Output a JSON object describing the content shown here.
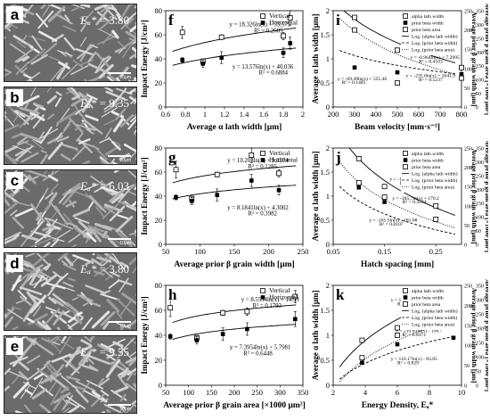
{
  "micro_panels": [
    {
      "label": "a",
      "energy_symbol": "Eₐ*",
      "energy_value": "= 3.80",
      "scale": "10μm",
      "seed": 3
    },
    {
      "label": "b",
      "energy_symbol": "Eₐ*",
      "energy_value": "= 9.35",
      "scale": "10μm",
      "seed": 7
    },
    {
      "label": "c",
      "energy_symbol": "Eₐ*",
      "energy_value": "= 6.03",
      "scale": "10μm",
      "seed": 11
    },
    {
      "label": "d",
      "energy_symbol": "Eₐ*",
      "energy_value": "= 3.80",
      "scale": "10μm",
      "seed": 19
    },
    {
      "label": "e",
      "energy_symbol": "Eₐ*",
      "energy_value": "= 9.55",
      "scale": "10μm",
      "seed": 23
    }
  ],
  "chart_data": [
    {
      "id": "f",
      "type": "scatter",
      "label": "f",
      "xlabel": "Average α lath width [μm]",
      "ylabel": "Impact Energy [J/cm²]",
      "xlim": [
        0.6,
        2.0
      ],
      "ylim": [
        0,
        80
      ],
      "xticks": [
        "0.6",
        "0.8",
        "1",
        "1.2",
        "1.4",
        "1.6",
        "1.8",
        "2"
      ],
      "xtick_vals": [
        0.6,
        0.8,
        1.0,
        1.2,
        1.4,
        1.6,
        1.8,
        2.0
      ],
      "yticks": [
        "0",
        "20",
        "40",
        "60",
        "80"
      ],
      "ytick_vals": [
        0,
        20,
        40,
        60,
        80
      ],
      "legend": [
        "Vertical",
        "Horizontal"
      ],
      "series": [
        {
          "name": "Vertical",
          "marker": "open-square",
          "fit": {
            "a": 18.326,
            "b": 53.575
          },
          "x": [
            0.77,
            0.98,
            1.17,
            1.8,
            1.87
          ],
          "y": [
            62,
            38,
            58,
            59,
            74
          ],
          "err": [
            5,
            2,
            2,
            3,
            6
          ]
        },
        {
          "name": "Horizontal",
          "marker": "filled-square",
          "fit": {
            "a": 13.576,
            "b": 40.036
          },
          "x": [
            0.77,
            0.98,
            1.17,
            1.8,
            1.87
          ],
          "y": [
            39,
            36,
            41,
            45,
            53
          ],
          "err": [
            2,
            3,
            5,
            4,
            5
          ]
        }
      ],
      "annotations": [
        {
          "text": "y = 18.326ln(x) + 53.575",
          "tx": 1.25,
          "ty": 67
        },
        {
          "text": "R² = 0.2605",
          "tx": 1.5,
          "ty": 62
        },
        {
          "text": "y = 13.576ln(x) + 40.036",
          "tx": 1.28,
          "ty": 32
        },
        {
          "text": "R² = 0.6884",
          "tx": 1.55,
          "ty": 27
        }
      ]
    },
    {
      "id": "g",
      "type": "scatter",
      "label": "g",
      "xlabel": "Average prior β grain width [μm]",
      "ylabel": "Impact Energy [J/cm²]",
      "xlim": [
        50,
        250
      ],
      "ylim": [
        0,
        80
      ],
      "xticks": [
        "50",
        "100",
        "150",
        "200",
        "250"
      ],
      "xtick_vals": [
        50,
        100,
        150,
        200,
        250
      ],
      "yticks": [
        "0",
        "20",
        "40",
        "60",
        "80"
      ],
      "ytick_vals": [
        0,
        20,
        40,
        60,
        80
      ],
      "legend": [
        "Vertical",
        "Horizontal"
      ],
      "series": [
        {
          "name": "Vertical",
          "marker": "open-square",
          "fit": {
            "a": 10.203,
            "b": 9.3374
          },
          "x": [
            65,
            88,
            125,
            175,
            215
          ],
          "y": [
            62,
            38,
            58,
            74,
            59
          ],
          "err": [
            7,
            3,
            2,
            6,
            3
          ]
        },
        {
          "name": "Horizontal",
          "marker": "filled-square",
          "fit": {
            "a": 8.1841,
            "b": 4.3002
          },
          "x": [
            65,
            88,
            125,
            175,
            215
          ],
          "y": [
            39,
            36,
            41,
            53,
            45
          ],
          "err": [
            2,
            3,
            5,
            5,
            4
          ]
        }
      ],
      "annotations": [
        {
          "text": "y = 10.203ln(x) + 9.3374",
          "tx": 140,
          "ty": 68
        },
        {
          "text": "R² = 0.1285",
          "tx": 170,
          "ty": 63
        },
        {
          "text": "y = 8.1841ln(x) + 4.3002",
          "tx": 140,
          "ty": 29
        },
        {
          "text": "R² = 0.3982",
          "tx": 170,
          "ty": 24
        }
      ]
    },
    {
      "id": "h",
      "type": "scatter",
      "label": "h",
      "xlabel": "Average prior β grain area [×1000 μm²]",
      "ylabel": "Impact Energy [J/cm²]",
      "xlim": [
        50,
        350
      ],
      "ylim": [
        0,
        80
      ],
      "xticks": [
        "50",
        "100",
        "150",
        "200",
        "250",
        "300",
        "350"
      ],
      "xtick_vals": [
        50,
        100,
        150,
        200,
        250,
        300,
        350
      ],
      "yticks": [
        "0",
        "20",
        "40",
        "60",
        "80"
      ],
      "ytick_vals": [
        0,
        20,
        40,
        60,
        80
      ],
      "legend": [
        "Vertical",
        "Horizontal"
      ],
      "series": [
        {
          "name": "Vertical",
          "marker": "open-square",
          "fit": {
            "a": 8.5594,
            "b": 14.53
          },
          "x": [
            60,
            118,
            175,
            228,
            333
          ],
          "y": [
            62,
            38,
            58,
            59,
            71
          ],
          "err": [
            7,
            2,
            2,
            3,
            5
          ]
        },
        {
          "name": "Horizontal",
          "marker": "filled-square",
          "fit": {
            "a": 7.3954,
            "b": 5.7981
          },
          "x": [
            60,
            118,
            175,
            228,
            333
          ],
          "y": [
            39,
            36,
            41,
            45,
            53
          ],
          "err": [
            2,
            3,
            5,
            5,
            6
          ]
        }
      ],
      "annotations": [
        {
          "text": "y = 8.5594ln(x) + 14.53",
          "tx": 215,
          "ty": 67
        },
        {
          "text": "R² = 0.1793",
          "tx": 240,
          "ty": 62
        },
        {
          "text": "y = 7.3954ln(x) + 5.7981",
          "tx": 190,
          "ty": 29
        },
        {
          "text": "R² = 0.6448",
          "tx": 220,
          "ty": 24
        }
      ]
    },
    {
      "id": "i",
      "type": "scatter",
      "label": "i",
      "xlabel": "Beam velocity [mm·s⁻¹]",
      "ylabel": "Average α lath width [μm]",
      "ylabel2": "Average prior β grain width [μm]",
      "ylabel3": "Average prior β grain area [×1000 μm²]",
      "xlim": [
        200,
        800
      ],
      "ylim": [
        0,
        2
      ],
      "xticks": [
        "200",
        "300",
        "400",
        "500",
        "600",
        "700",
        "800"
      ],
      "xtick_vals": [
        200,
        300,
        400,
        500,
        600,
        700,
        800
      ],
      "yticks": [
        "0",
        "0.5",
        "1",
        "1.5",
        "2"
      ],
      "ytick_vals": [
        0,
        0.5,
        1.0,
        1.5,
        2.0
      ],
      "y2ticks": [
        "0",
        "50",
        "100",
        "150",
        "200",
        "250"
      ],
      "y3ticks": [
        "0",
        "50",
        "100",
        "150",
        "200",
        "250",
        "300",
        "350"
      ],
      "legend": [
        "alpha lath width",
        "prior beta width",
        "prior beta area",
        "Log. (alpha lath width)",
        "Log. (prior beta width)",
        "Log. (prior beta area)"
      ],
      "series": [
        {
          "name": "alpha lath width",
          "marker": "open-square",
          "fit": {
            "a": -0.96,
            "b": 7.2995
          },
          "x": [
            300,
            500,
            800
          ],
          "y": [
            1.86,
            1.18,
            0.82
          ]
        },
        {
          "name": "prior beta width",
          "marker": "filled-square",
          "fit": {
            "a": -0.4,
            "b": 3.35
          },
          "x": [
            300,
            500,
            800
          ],
          "y": [
            0.82,
            0.72,
            0.68
          ]
        },
        {
          "name": "prior beta area",
          "marker": "open-square",
          "fit": {
            "a": -0.96,
            "b": 7.06
          },
          "x": [
            300,
            500,
            800
          ],
          "y": [
            1.6,
            0.5,
            0.6
          ]
        }
      ],
      "annotations": [
        {
          "text": "y = -0.964ln(x) + 7.2995",
          "tx": 560,
          "ty": 1.0
        },
        {
          "text": "R² = 0.4103",
          "tx": 600,
          "ty": 0.92
        },
        {
          "text": "y = -235.6ln(x) + 1641.9",
          "tx": 540,
          "ty": 0.62
        },
        {
          "text": "R² = 0.5237",
          "tx": 600,
          "ty": 0.54
        },
        {
          "text": "y = -69.49ln(x) + 555.46",
          "tx": 220,
          "ty": 0.56
        },
        {
          "text": "R² = 0.1483",
          "tx": 240,
          "ty": 0.48
        }
      ]
    },
    {
      "id": "j",
      "type": "scatter",
      "label": "j",
      "xlabel": "Hatch spacing [mm]",
      "ylabel": "Average α lath width [μm]",
      "ylabel2": "Average prior β grain width [μm]",
      "ylabel3": "Average prior β grain area [×1000 μm²]",
      "xlim": [
        0.05,
        0.3
      ],
      "ylim": [
        0,
        2
      ],
      "xticks": [
        "0.05",
        "0.15",
        "0.25"
      ],
      "xtick_vals": [
        0.05,
        0.15,
        0.25
      ],
      "yticks": [
        "0",
        "0.5",
        "1",
        "1.5",
        "2"
      ],
      "ytick_vals": [
        0,
        0.5,
        1.0,
        1.5,
        2.0
      ],
      "y2ticks": [
        "0",
        "50",
        "100",
        "150",
        "200",
        "250"
      ],
      "y3ticks": [
        "0",
        "50",
        "100",
        "150",
        "200",
        "250",
        "300",
        "350"
      ],
      "legend": [
        "alpha lath width",
        "prior beta width",
        "prior beta area",
        "Log. (alpha lath width)",
        "Log. (prior beta width)",
        "Log. (prior beta area)"
      ],
      "series": [
        {
          "name": "alpha lath width",
          "marker": "open-square",
          "fit": {
            "a": -1.108,
            "b": -0.7769
          },
          "x": [
            0.1,
            0.15,
            0.25
          ],
          "y": [
            1.78,
            1.2,
            0.8
          ]
        },
        {
          "name": "prior beta width",
          "marker": "filled-square",
          "fit": {
            "a": -0.65,
            "b": -0.6
          },
          "x": [
            0.1,
            0.15,
            0.25
          ],
          "y": [
            1.18,
            0.88,
            0.52
          ]
        },
        {
          "name": "prior beta area",
          "marker": "open-square",
          "fit": {
            "a": -0.9,
            "b": -0.78
          },
          "x": [
            0.1,
            0.15,
            0.25
          ],
          "y": [
            1.28,
            0.98,
            0.52
          ]
        }
      ],
      "annotations": [
        {
          "text": "y = -1.108ln(x) - 0.7769",
          "tx": 0.16,
          "ty": 1.32
        },
        {
          "text": "R² = 0.5489",
          "tx": 0.18,
          "ty": 1.24
        },
        {
          "text": "y = -185.7ln(x) + 170.2",
          "tx": 0.165,
          "ty": 0.93
        },
        {
          "text": "R² = 0.3294",
          "tx": 0.185,
          "ty": 0.85
        },
        {
          "text": "y = -161.5ln(x) - 181.08",
          "tx": 0.12,
          "ty": 0.47
        },
        {
          "text": "R² = 0.8107",
          "tx": 0.14,
          "ty": 0.39
        }
      ]
    },
    {
      "id": "k",
      "type": "scatter",
      "label": "k",
      "xlabel": "Energy Density, Eₐ*",
      "ylabel": "Average α lath width [μm]",
      "ylabel2": "Average prior β grain width [μm]",
      "ylabel3": "Average prior β grain area [×1000 μm²]",
      "xlim": [
        2,
        10
      ],
      "ylim": [
        0,
        2
      ],
      "xticks": [
        "2",
        "4",
        "6",
        "8",
        "10"
      ],
      "xtick_vals": [
        2,
        4,
        6,
        8,
        10
      ],
      "yticks": [
        "0",
        "0.5",
        "1",
        "1.5",
        "2"
      ],
      "ytick_vals": [
        0,
        0.5,
        1.0,
        1.5,
        2.0
      ],
      "y2ticks": [
        "0",
        "50",
        "100",
        "150",
        "200",
        "250"
      ],
      "y3ticks": [
        "0",
        "50",
        "100",
        "150",
        "200",
        "250",
        "300",
        "350"
      ],
      "legend": [
        "alpha lath width",
        "prior beta width",
        "prior beta area",
        "Log. (alpha lath width)",
        "Log. (prior beta width)",
        "Log. (prior beta area)"
      ],
      "series": [
        {
          "name": "alpha lath width",
          "marker": "open-square",
          "fit": {
            "a": 1.0394,
            "b": -0.5439
          },
          "x": [
            3.8,
            6.0,
            9.5
          ],
          "y": [
            0.9,
            1.15,
            1.9
          ]
        },
        {
          "name": "prior beta width",
          "marker": "filled-square",
          "fit": {
            "a": 0.62,
            "b": -0.42
          },
          "x": [
            3.8,
            6.0,
            9.5
          ],
          "y": [
            0.45,
            0.82,
            0.95
          ]
        },
        {
          "name": "prior beta area",
          "marker": "open-square",
          "fit": {
            "a": 0.9,
            "b": -0.72
          },
          "x": [
            3.8,
            6.0,
            9.5
          ],
          "y": [
            0.55,
            1.0,
            1.75
          ]
        }
      ],
      "annotations": [
        {
          "text": "y = 1.0394ln(x) - 0.5439",
          "tx": 5.6,
          "ty": 1.68
        },
        {
          "text": "R² = 0.9535",
          "tx": 6.0,
          "ty": 1.6
        },
        {
          "text": "y = 210.63ln(x) - 196.7",
          "tx": 5.9,
          "ty": 1.06
        },
        {
          "text": "R² = 0.8371",
          "tx": 6.3,
          "ty": 0.98
        },
        {
          "text": "y = 116.17ln(x) - 83.85",
          "tx": 5.6,
          "ty": 0.5
        },
        {
          "text": "R² = 0.829",
          "tx": 6.0,
          "ty": 0.42
        }
      ]
    }
  ]
}
